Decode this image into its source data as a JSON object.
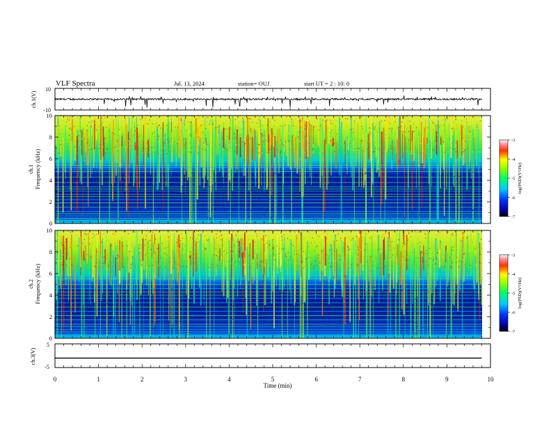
{
  "header": {
    "title": "VLF Spectra",
    "date": "Jul. 13, 2024",
    "station": "station= OUJ",
    "start": "start UT = 2 : 10: 0"
  },
  "chart_data": [
    {
      "type": "line",
      "id": "ch1-waveform",
      "ylabel": "ch.1(V)",
      "ylim": [
        -10,
        10
      ],
      "y_ticks": [
        "10",
        "-10"
      ],
      "xlim": [
        0,
        10
      ],
      "baseline": 0,
      "description_color": "#000000"
    },
    {
      "type": "heatmap",
      "id": "ch1-spectrogram",
      "ylabel_top": "ch.1",
      "ylabel": "Frequency (kHz)",
      "ylim": [
        0,
        10
      ],
      "y_ticks": [
        "0",
        "2",
        "4",
        "6",
        "8",
        "10"
      ],
      "xlim": [
        0,
        10
      ],
      "colorbar": {
        "label": "log(PSD)(V²/Hz)",
        "ticks": [
          "-3",
          "-4",
          "-5",
          "-6",
          "-7"
        ],
        "range": [
          -7,
          -3
        ]
      }
    },
    {
      "type": "heatmap",
      "id": "ch2-spectrogram",
      "ylabel_top": "ch.2",
      "ylabel": "Frequency (kHz)",
      "ylim": [
        0,
        10
      ],
      "y_ticks": [
        "0",
        "2",
        "4",
        "6",
        "8",
        "10"
      ],
      "xlim": [
        0,
        10
      ],
      "colorbar": {
        "label": "log(PSD)(V²/Hz)",
        "ticks": [
          "-3",
          "-4",
          "-5",
          "-6",
          "-7"
        ],
        "range": [
          -7,
          -3
        ]
      }
    },
    {
      "type": "line",
      "id": "ch3-waveform",
      "ylabel": "ch.3(V)",
      "ylim": [
        -5,
        5
      ],
      "y_ticks": [
        "5",
        "-5"
      ],
      "xlim": [
        0,
        10
      ],
      "value": -1,
      "xlabel": "Time (min)",
      "x_ticks": [
        "0",
        "1",
        "2",
        "3",
        "4",
        "5",
        "6",
        "7",
        "8",
        "9",
        "10"
      ]
    }
  ]
}
